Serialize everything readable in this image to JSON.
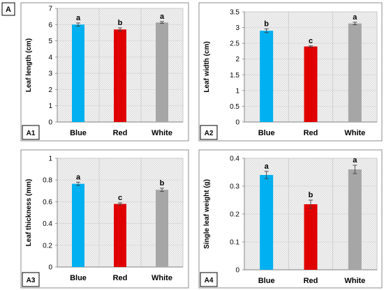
{
  "figure": {
    "label": "A"
  },
  "chart_data": [
    {
      "type": "bar",
      "panel_label": "A1",
      "categories": [
        "Blue",
        "Red",
        "White"
      ],
      "values": [
        6.0,
        5.7,
        6.13
      ],
      "errors": [
        0.1,
        0.1,
        0.06
      ],
      "letters": [
        "a",
        "b",
        "a"
      ],
      "colors": [
        "#00b0f0",
        "#e00000",
        "#a6a6a6"
      ],
      "ylabel": "Leaf length (cm)",
      "ylim": [
        0,
        7
      ],
      "yticks": [
        0,
        1,
        2,
        3,
        4,
        5,
        6,
        7
      ],
      "tick_labels": [
        "0",
        "1",
        "2",
        "3",
        "4",
        "5",
        "6",
        "7"
      ],
      "grid": true
    },
    {
      "type": "bar",
      "panel_label": "A2",
      "categories": [
        "Blue",
        "Red",
        "White"
      ],
      "values": [
        2.9,
        2.4,
        3.13
      ],
      "errors": [
        0.06,
        0.02,
        0.04
      ],
      "letters": [
        "b",
        "c",
        "a"
      ],
      "colors": [
        "#00b0f0",
        "#e00000",
        "#a6a6a6"
      ],
      "ylabel": "Leaf width (cm)",
      "ylim": [
        0,
        3.5
      ],
      "yticks": [
        0,
        0.5,
        1,
        1.5,
        2,
        2.5,
        3,
        3.5
      ],
      "tick_labels": [
        "0",
        "0.5",
        "1",
        "1.5",
        "2",
        "2.5",
        "3",
        "3.5"
      ],
      "grid": true
    },
    {
      "type": "bar",
      "panel_label": "A3",
      "categories": [
        "Blue",
        "Red",
        "White"
      ],
      "values": [
        0.765,
        0.58,
        0.71
      ],
      "errors": [
        0.015,
        0.01,
        0.015
      ],
      "letters": [
        "a",
        "c",
        "b"
      ],
      "colors": [
        "#00b0f0",
        "#e00000",
        "#a6a6a6"
      ],
      "ylabel": "Leaf thickness (mm)",
      "ylim": [
        0,
        1
      ],
      "yticks": [
        0,
        0.2,
        0.4,
        0.6,
        0.8,
        1
      ],
      "tick_labels": [
        "0",
        "0.2",
        "0.4",
        "0.6",
        "0.8",
        "1"
      ],
      "grid": true
    },
    {
      "type": "bar",
      "panel_label": "A4",
      "categories": [
        "Blue",
        "Red",
        "White"
      ],
      "values": [
        0.34,
        0.235,
        0.36
      ],
      "errors": [
        0.013,
        0.015,
        0.015
      ],
      "letters": [
        "a",
        "b",
        "a"
      ],
      "colors": [
        "#00b0f0",
        "#e00000",
        "#a6a6a6"
      ],
      "ylabel": "Single leaf weight (g)",
      "ylim": [
        0,
        0.4
      ],
      "yticks": [
        0,
        0.1,
        0.2,
        0.3,
        0.4
      ],
      "tick_labels": [
        "0",
        "0.1",
        "0.2",
        "0.3",
        "0.4"
      ],
      "grid": true
    }
  ]
}
